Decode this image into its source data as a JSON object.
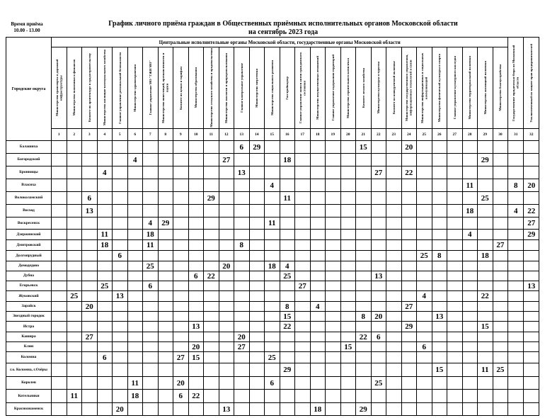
{
  "reception_time": {
    "label": "Время приёма",
    "hours": "10.00 - 13.00"
  },
  "title": {
    "line1": "График личного приёма граждан в Общественных приёмных исполнительных органов Московской области",
    "line2": "на сентябрь 2023 года"
  },
  "table": {
    "district_header": "Городские округа",
    "group_header": "Центральные исполнительные органы Московской области, государственные органы Московской области",
    "organizations": [
      {
        "num": "1",
        "name": "Министерство транспорта и дорожной инфраструктуры"
      },
      {
        "num": "2",
        "name": "Министерство экономики и финансов"
      },
      {
        "num": "3",
        "name": "Комитет по архитектуре и градостроительству"
      },
      {
        "num": "4",
        "name": "Министерство жилищно-коммунального хозяйства"
      },
      {
        "num": "5",
        "name": "Главное управление региональной безопасности"
      },
      {
        "num": "6",
        "name": "Министерство здравоохранения"
      },
      {
        "num": "7",
        "name": "Главное управление МО \"ГЖИ МО\""
      },
      {
        "num": "8",
        "name": "Министерство инвестиций, промышленности и науки"
      },
      {
        "num": "9",
        "name": "Комитет по ценам и тарифам"
      },
      {
        "num": "10",
        "name": "Министерство образования"
      },
      {
        "num": "11",
        "name": "Министерство сельского хозяйства и продовольствия"
      },
      {
        "num": "12",
        "name": "Министерство экологии и природопользования"
      },
      {
        "num": "13",
        "name": "Главное контрольное управление"
      },
      {
        "num": "14",
        "name": "Министерство энергетики"
      },
      {
        "num": "15",
        "name": "Министерство социального развития"
      },
      {
        "num": "16",
        "name": "Госстройнадзор"
      },
      {
        "num": "17",
        "name": "Главное управление записи актов гражданского состояния"
      },
      {
        "num": "18",
        "name": "Министерство имущественных отношений"
      },
      {
        "num": "19",
        "name": "Главное управление содержания территорий"
      },
      {
        "num": "20",
        "name": "Министерство строительного комплекса"
      },
      {
        "num": "21",
        "name": "Комитет лесного хозяйства"
      },
      {
        "num": "22",
        "name": "Министерство культуры и туризма"
      },
      {
        "num": "23",
        "name": "Комитет по конкурентной политике"
      },
      {
        "num": "24",
        "name": "Министерство государственного управления, информационных технологий и связи"
      },
      {
        "num": "25",
        "name": "Министерство информационных и социальных коммуникаций"
      },
      {
        "num": "26",
        "name": "Министерство физической культуры и спорта"
      },
      {
        "num": "27",
        "name": "Главное управление культурного наследия"
      },
      {
        "num": "28",
        "name": "Министерство территориальной политики"
      },
      {
        "num": "29",
        "name": "Министерство жилищной политики"
      },
      {
        "num": "30",
        "name": "Министерство благоустройства"
      },
      {
        "num": "31",
        "name": "Государственное юридическое бюро по Московской области"
      },
      {
        "num": "32",
        "name": "Уполномоченный по защите прав предпринимателей"
      }
    ],
    "rows": [
      {
        "district": "Балашиха",
        "days": {
          "13": "6",
          "14": "29",
          "21": "15",
          "24": "20"
        }
      },
      {
        "district": "Богородский",
        "days": {
          "6": "4",
          "12": "27",
          "16": "18",
          "29": "29"
        }
      },
      {
        "district": "Бронницы",
        "days": {
          "4": "4",
          "13": "13",
          "22": "27",
          "24": "22"
        }
      },
      {
        "district": "Власиха",
        "days": {
          "15": "4",
          "28": "11",
          "31": "8",
          "32": "20"
        }
      },
      {
        "district": "Волоколамский",
        "days": {
          "3": "6",
          "11": "29",
          "16": "11",
          "29": "25"
        }
      },
      {
        "district": "Восход",
        "days": {
          "3": "13",
          "28": "18",
          "31": "4",
          "32": "22"
        }
      },
      {
        "district": "Воскресенск",
        "days": {
          "7": "4",
          "8": "29",
          "15": "11",
          "32": "27"
        }
      },
      {
        "district": "Дзержинский",
        "days": {
          "4": "11",
          "7": "18",
          "28": "4",
          "32": "29"
        }
      },
      {
        "district": "Дмитровский",
        "days": {
          "4": "18",
          "7": "11",
          "13": "8",
          "30": "27"
        }
      },
      {
        "district": "Долгопрудный",
        "days": {
          "5": "6",
          "25": "25",
          "26": "8",
          "29": "18"
        }
      },
      {
        "district": "Домодедово",
        "days": {
          "7": "25",
          "12": "20",
          "15": "18",
          "16": "4"
        }
      },
      {
        "district": "Дубна",
        "days": {
          "10": "6",
          "11": "22",
          "16": "25",
          "22": "13"
        }
      },
      {
        "district": "Егорьевск",
        "days": {
          "4": "25",
          "7": "6",
          "17": "27",
          "32": "13"
        }
      },
      {
        "district": "Жуковский",
        "days": {
          "2": "25",
          "5": "13",
          "25": "4",
          "29": "22"
        }
      },
      {
        "district": "Зарайск",
        "days": {
          "3": "20",
          "16": "8",
          "18": "4",
          "24": "27"
        }
      },
      {
        "district": "Звездный городок",
        "days": {
          "16": "15",
          "21": "8",
          "22": "20",
          "26": "13"
        }
      },
      {
        "district": "Истра",
        "days": {
          "10": "13",
          "16": "22",
          "24": "29",
          "29": "15"
        }
      },
      {
        "district": "Кашира",
        "days": {
          "3": "27",
          "13": "20",
          "21": "22",
          "22": "6"
        }
      },
      {
        "district": "Клин",
        "days": {
          "10": "20",
          "13": "27",
          "20": "15",
          "25": "6"
        }
      },
      {
        "district": "Коломна",
        "days": {
          "4": "6",
          "9": "27",
          "10": "15",
          "15": "25"
        }
      },
      {
        "district": "г.о. Коломна, г.Озёры",
        "days": {
          "16": "29",
          "26": "15",
          "29": "11",
          "30": "25"
        }
      },
      {
        "district": "Королев",
        "days": {
          "6": "11",
          "9": "20",
          "15": "6",
          "22": "25"
        }
      },
      {
        "district": "Котельники",
        "days": {
          "2": "11",
          "6": "18",
          "9": "6",
          "10": "22"
        }
      },
      {
        "district": "Краснознаменск",
        "days": {
          "5": "20",
          "12": "13",
          "18": "18",
          "21": "29"
        }
      }
    ]
  }
}
